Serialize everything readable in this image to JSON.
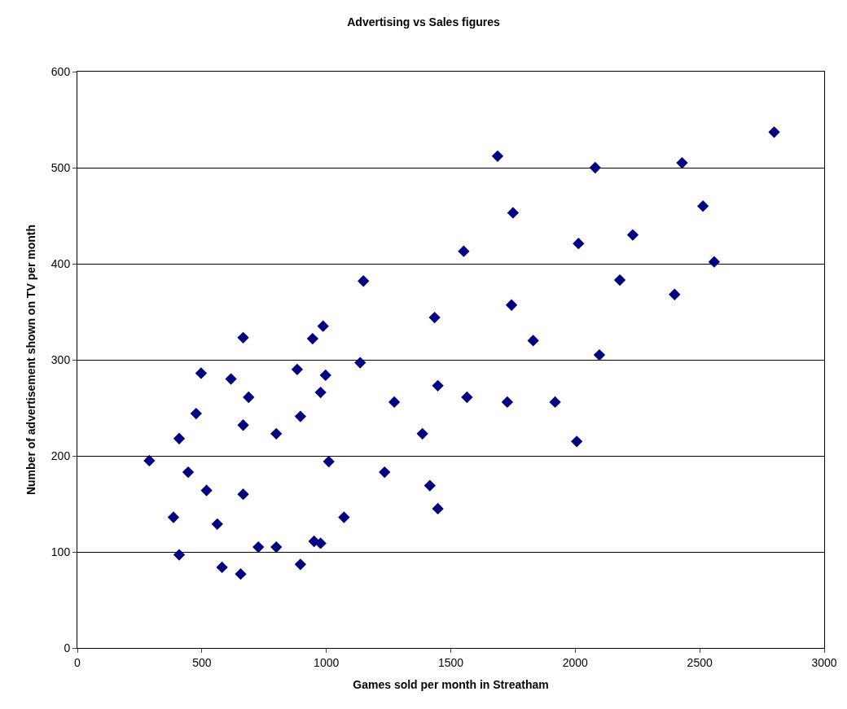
{
  "chart_data": {
    "type": "scatter",
    "title": "Advertising vs Sales figures",
    "xlabel": "Games sold per month in Streatham",
    "ylabel": "Number of advertisement shown on TV per month",
    "x": [
      289,
      386,
      409,
      409,
      445,
      477,
      497,
      519,
      562,
      581,
      617,
      656,
      666,
      666,
      666,
      688,
      727,
      799,
      799,
      883,
      896,
      896,
      945,
      951,
      977,
      977,
      987,
      997,
      1010,
      1071,
      1136,
      1149,
      1234,
      1273,
      1386,
      1416,
      1435,
      1448,
      1448,
      1552,
      1565,
      1688,
      1727,
      1750,
      1744,
      1831,
      1919,
      2006,
      2013,
      2080,
      2097,
      2179,
      2231,
      2399,
      2429,
      2513,
      2558,
      2799
    ],
    "series": [
      {
        "color": "#000080",
        "values": [
          195,
          136,
          97,
          218,
          183,
          244,
          286,
          164,
          129,
          84,
          280,
          77,
          323,
          232,
          160,
          261,
          105,
          105,
          223,
          290,
          241,
          87,
          322,
          111,
          109,
          266,
          335,
          284,
          194,
          136,
          297,
          382,
          183,
          256,
          223,
          169,
          344,
          273,
          145,
          413,
          261,
          512,
          256,
          453,
          357,
          320,
          256,
          215,
          421,
          500,
          305,
          383,
          430,
          368,
          505,
          460,
          402,
          537
        ]
      }
    ],
    "xlim": [
      0,
      3000
    ],
    "xticks": [
      0,
      500,
      1000,
      1500,
      2000,
      2500,
      3000
    ],
    "ylim": [
      0,
      600
    ],
    "yticks": [
      0,
      100,
      200,
      300,
      400,
      500,
      600
    ],
    "grid": "y",
    "marker": "diamond"
  }
}
